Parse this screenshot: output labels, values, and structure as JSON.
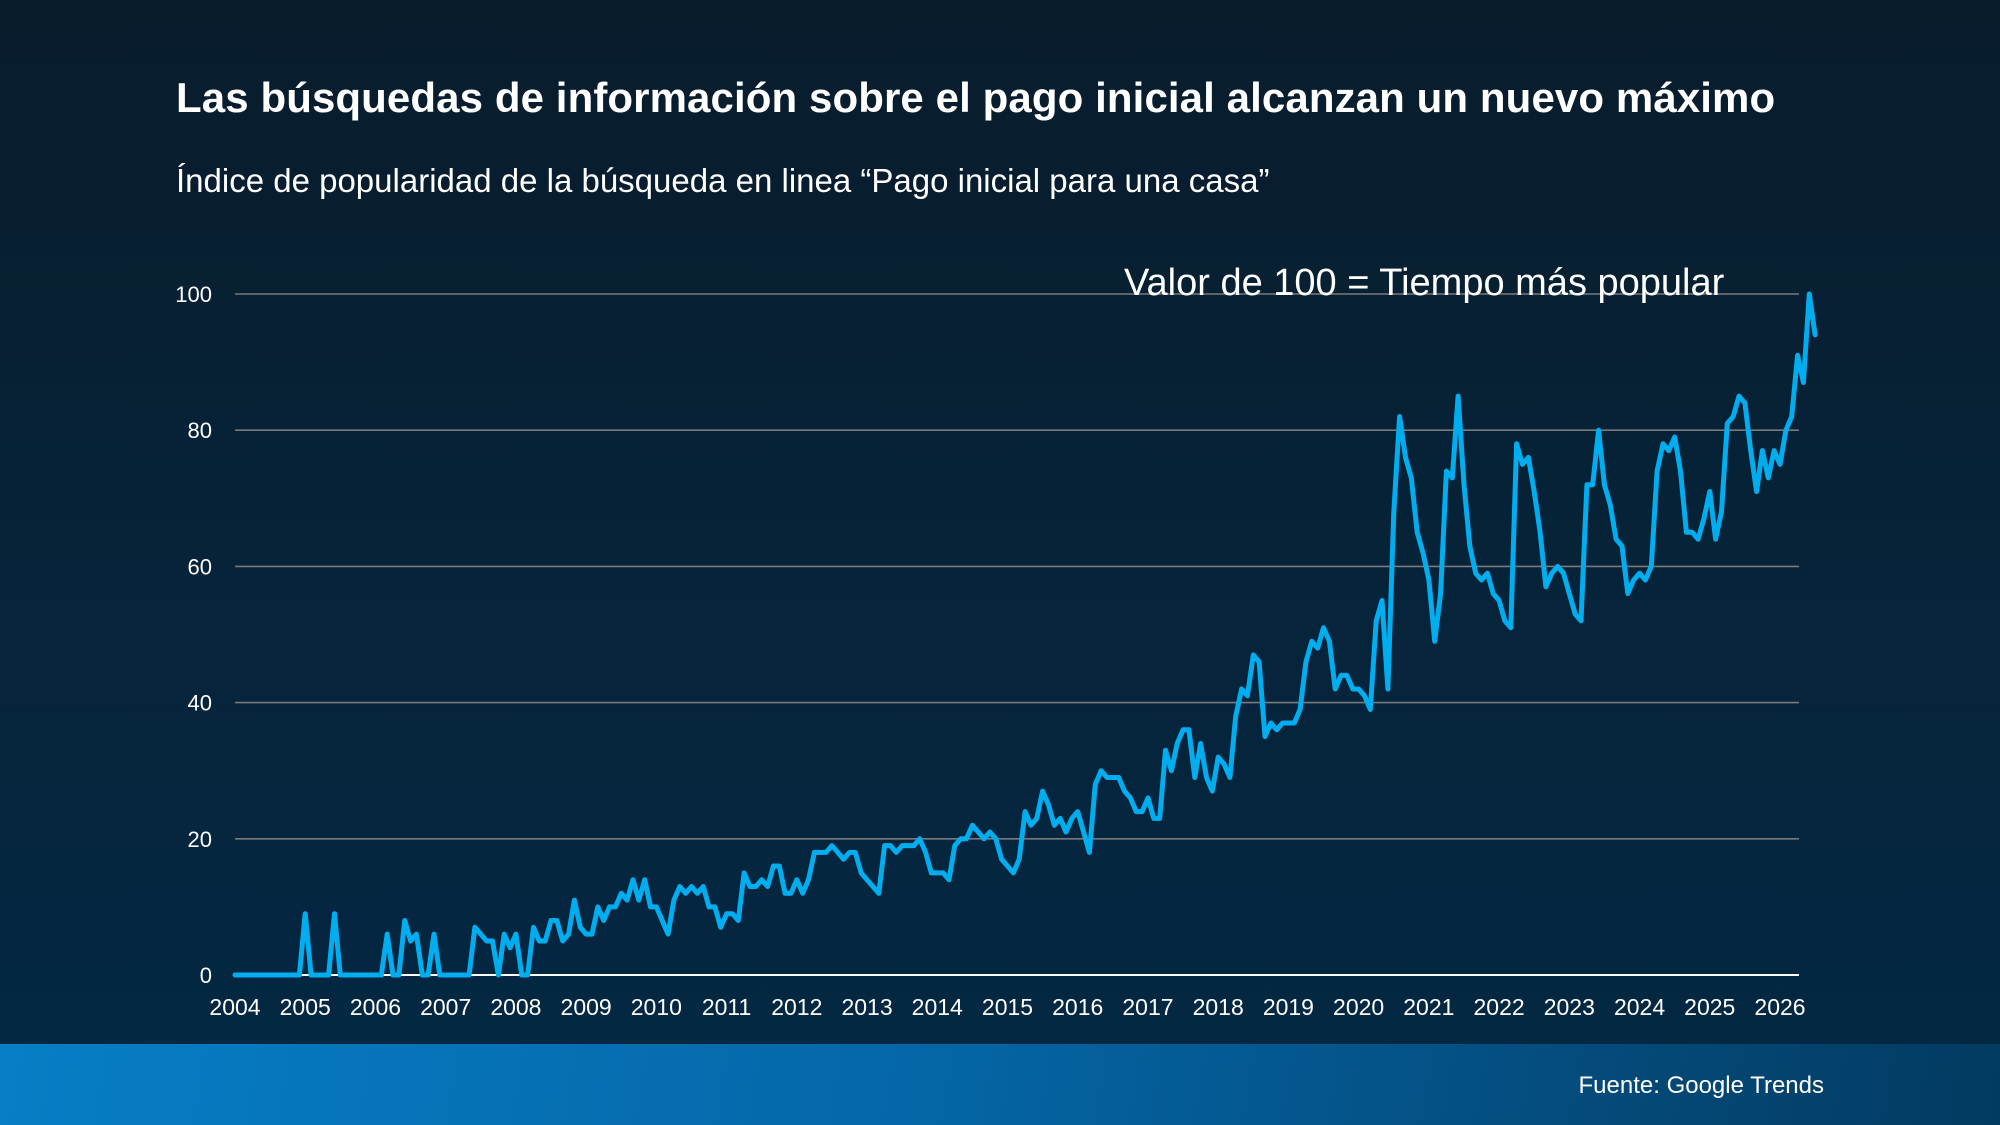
{
  "header": {
    "title": "Las búsquedas de información sobre el pago inicial alcanzan un nuevo máximo",
    "subtitle": "Índice de popularidad de la búsqueda en linea “Pago inicial para una casa”"
  },
  "footer": {
    "source": "Fuente: Google Trends"
  },
  "colors": {
    "line": "#00aeef",
    "grid": "#7a7a7a",
    "axis": "#ffffff",
    "footer_left": "#077ec6",
    "footer_right": "#033a60"
  },
  "chart_data": {
    "type": "line",
    "title": "Las búsquedas de información sobre el pago inicial alcanzan un nuevo máximo",
    "subtitle": "Índice de popularidad de la búsqueda en linea “Pago inicial para una casa”",
    "annotation": "Valor de 100 = Tiempo más popular",
    "xlabel": "",
    "ylabel": "",
    "ylim": [
      0,
      100
    ],
    "yticks": [
      0,
      20,
      40,
      60,
      80,
      100
    ],
    "xticks": [
      "2004",
      "2005",
      "2006",
      "2007",
      "2008",
      "2009",
      "2010",
      "2011",
      "2012",
      "2013",
      "2014",
      "2015",
      "2016",
      "2017",
      "2018",
      "2019",
      "2020",
      "2021",
      "2022",
      "2023",
      "2024",
      "2025",
      "2026"
    ],
    "xlim": [
      2004,
      2026.4
    ],
    "grid": "horizontal",
    "legend": "none",
    "frequency": "monthly",
    "start": "2004-01",
    "series": [
      {
        "name": "Pago inicial para una casa",
        "values": [
          0,
          0,
          0,
          0,
          0,
          0,
          0,
          0,
          0,
          0,
          0,
          0,
          9,
          0,
          0,
          0,
          0,
          9,
          0,
          0,
          0,
          0,
          0,
          0,
          0,
          0,
          6,
          0,
          0,
          8,
          5,
          6,
          0,
          0,
          6,
          0,
          0,
          0,
          0,
          0,
          0,
          7,
          6,
          5,
          5,
          0,
          6,
          4,
          6,
          0,
          0,
          7,
          5,
          5,
          8,
          8,
          5,
          6,
          11,
          7,
          6,
          6,
          10,
          8,
          10,
          10,
          12,
          11,
          14,
          11,
          14,
          10,
          10,
          8,
          6,
          11,
          13,
          12,
          13,
          12,
          13,
          10,
          10,
          7,
          9,
          9,
          8,
          15,
          13,
          13,
          14,
          13,
          16,
          16,
          12,
          12,
          14,
          12,
          14,
          18,
          18,
          18,
          19,
          18,
          17,
          18,
          18,
          15,
          14,
          13,
          12,
          19,
          19,
          18,
          19,
          19,
          19,
          20,
          18,
          15,
          15,
          15,
          14,
          19,
          20,
          20,
          22,
          21,
          20,
          21,
          20,
          17,
          16,
          15,
          17,
          24,
          22,
          23,
          27,
          25,
          22,
          23,
          21,
          23,
          24,
          21,
          18,
          28,
          30,
          29,
          29,
          29,
          27,
          26,
          24,
          24,
          26,
          23,
          23,
          33,
          30,
          34,
          36,
          36,
          29,
          34,
          29,
          27,
          32,
          31,
          29,
          38,
          42,
          41,
          47,
          46,
          35,
          37,
          36,
          37,
          37,
          37,
          39,
          46,
          49,
          48,
          51,
          49,
          42,
          44,
          44,
          42,
          42,
          41,
          39,
          52,
          55,
          42,
          68,
          82,
          76,
          73,
          65,
          62,
          58,
          49,
          56,
          74,
          73,
          85,
          72,
          63,
          59,
          58,
          59,
          56,
          55,
          52,
          51,
          78,
          75,
          76,
          71,
          65,
          57,
          59,
          60,
          59,
          56,
          53,
          52,
          72,
          72,
          80,
          72,
          69,
          64,
          63,
          56,
          58,
          59,
          58,
          60,
          74,
          78,
          77,
          79,
          74,
          65,
          65,
          64,
          67,
          71,
          64,
          68,
          81,
          82,
          85,
          84,
          77,
          71,
          77,
          73,
          77,
          75,
          80,
          82,
          91,
          87,
          100,
          94
        ]
      }
    ]
  }
}
